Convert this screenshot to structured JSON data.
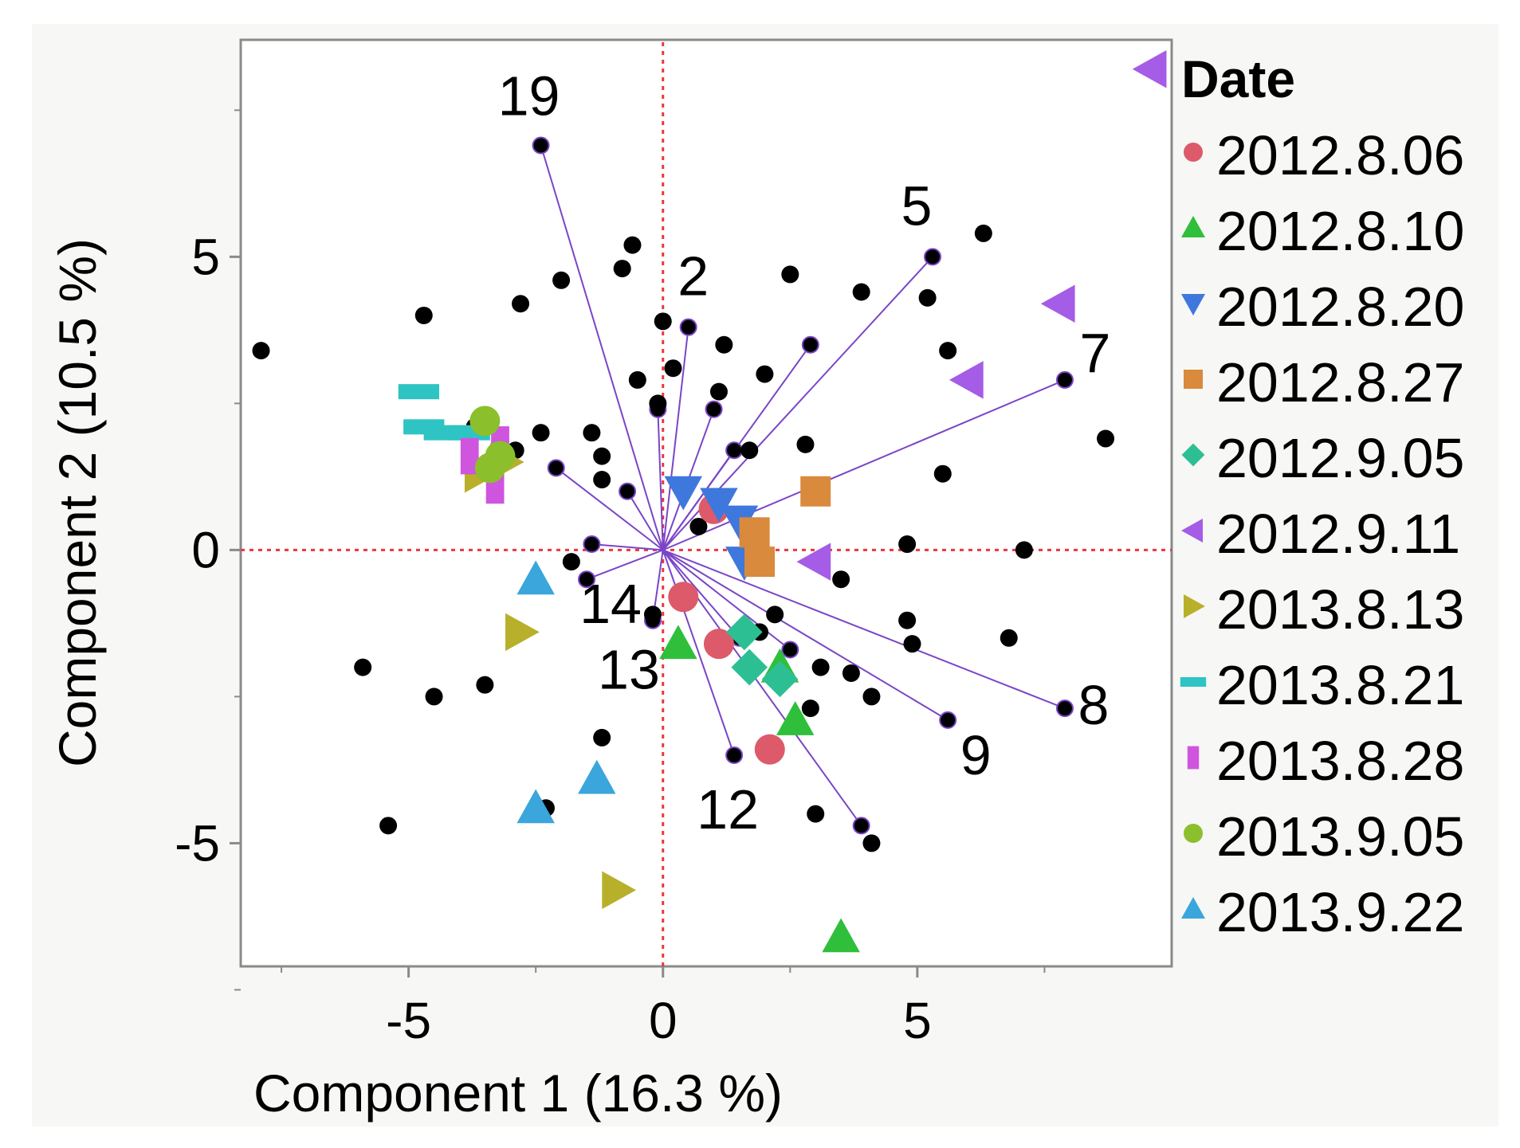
{
  "chart_data": {
    "type": "scatter",
    "subtype": "biplot",
    "xlabel": "Component 1  (16.3 %)",
    "ylabel": "Component 2  (10.5 %)",
    "xlim": [
      -8.3,
      10.0
    ],
    "ylim": [
      -7.1,
      8.7
    ],
    "xticks": [
      -5,
      0,
      5
    ],
    "yticks": [
      -5,
      0,
      5
    ],
    "reference_lines": {
      "x": 0,
      "y": 0,
      "color": "#e8383d",
      "style": "dotted"
    },
    "grid": false,
    "legend": {
      "title": "Date",
      "placement": "right",
      "entries": [
        {
          "label": "2012.8.06",
          "marker": "circle",
          "color": "#dc5a6a"
        },
        {
          "label": "2012.8.10",
          "marker": "triangle-up",
          "color": "#2fbf3b"
        },
        {
          "label": "2012.8.20",
          "marker": "triangle-down",
          "color": "#3f78dd"
        },
        {
          "label": "2012.8.27",
          "marker": "square",
          "color": "#d98a3c"
        },
        {
          "label": "2012.9.05",
          "marker": "diamond",
          "color": "#2cbf94"
        },
        {
          "label": "2012.9.11",
          "marker": "triangle-left",
          "color": "#a55ce6"
        },
        {
          "label": "2013.8.13",
          "marker": "triangle-right",
          "color": "#b8b02a"
        },
        {
          "label": "2013.8.21",
          "marker": "dash",
          "color": "#2ec4c4"
        },
        {
          "label": "2013.8.28",
          "marker": "bar",
          "color": "#cf55df"
        },
        {
          "label": "2013.9.05",
          "marker": "circle",
          "color": "#8bbf2c"
        },
        {
          "label": "2013.9.22",
          "marker": "triangle-up",
          "color": "#3aa6dc"
        }
      ]
    },
    "loading_color": "#7a45c7",
    "score_color": "#000000",
    "loadings": [
      {
        "label": "19",
        "x": -2.4,
        "y": 6.9
      },
      {
        "label": "2",
        "x": 0.5,
        "y": 3.8
      },
      {
        "label": "5",
        "x": 5.3,
        "y": 5.0
      },
      {
        "label": "7",
        "x": 7.9,
        "y": 2.9
      },
      {
        "label": "8",
        "x": 7.9,
        "y": -2.7
      },
      {
        "label": "9",
        "x": 5.6,
        "y": -2.9
      },
      {
        "label": "12",
        "x": 1.4,
        "y": -3.5
      },
      {
        "label": "13",
        "x": -0.2,
        "y": -1.2
      },
      {
        "label": "14",
        "x": -1.5,
        "y": -0.5
      },
      {
        "label": "",
        "x": -2.1,
        "y": 1.4
      },
      {
        "label": "",
        "x": -0.7,
        "y": 1.0
      },
      {
        "label": "",
        "x": -1.4,
        "y": 0.1
      },
      {
        "label": "",
        "x": -0.1,
        "y": 2.4
      },
      {
        "label": "",
        "x": 1.0,
        "y": 2.4
      },
      {
        "label": "",
        "x": 2.9,
        "y": 3.5
      },
      {
        "label": "",
        "x": 1.4,
        "y": 1.7
      },
      {
        "label": "",
        "x": 2.5,
        "y": -1.7
      },
      {
        "label": "",
        "x": 3.9,
        "y": -4.7
      },
      {
        "label": "",
        "x": 1.5,
        "y": -1.5
      }
    ],
    "scores": [
      {
        "x": -7.9,
        "y": 3.4
      },
      {
        "x": -4.7,
        "y": 4.0
      },
      {
        "x": -2.8,
        "y": 4.2
      },
      {
        "x": -2.0,
        "y": 4.6
      },
      {
        "x": -0.8,
        "y": 4.8
      },
      {
        "x": -0.6,
        "y": 5.2
      },
      {
        "x": 0.0,
        "y": 3.9
      },
      {
        "x": 1.2,
        "y": 3.5
      },
      {
        "x": 2.5,
        "y": 4.7
      },
      {
        "x": 3.9,
        "y": 4.4
      },
      {
        "x": 5.2,
        "y": 4.3
      },
      {
        "x": 6.3,
        "y": 5.4
      },
      {
        "x": 5.6,
        "y": 3.4
      },
      {
        "x": 8.7,
        "y": 1.9
      },
      {
        "x": 5.5,
        "y": 1.3
      },
      {
        "x": 4.8,
        "y": 0.1
      },
      {
        "x": 7.1,
        "y": 0.0
      },
      {
        "x": 0.2,
        "y": 3.1
      },
      {
        "x": -0.5,
        "y": 2.9
      },
      {
        "x": 1.1,
        "y": 2.7
      },
      {
        "x": 2.0,
        "y": 3.0
      },
      {
        "x": -0.1,
        "y": 2.5
      },
      {
        "x": -3.7,
        "y": 2.1
      },
      {
        "x": -2.4,
        "y": 2.0
      },
      {
        "x": -1.4,
        "y": 2.0
      },
      {
        "x": -2.9,
        "y": 1.7
      },
      {
        "x": -1.2,
        "y": 1.6
      },
      {
        "x": -1.2,
        "y": 1.2
      },
      {
        "x": 1.7,
        "y": 1.7
      },
      {
        "x": 2.8,
        "y": 1.8
      },
      {
        "x": 0.7,
        "y": 0.4
      },
      {
        "x": -1.8,
        "y": -0.2
      },
      {
        "x": 3.5,
        "y": -0.5
      },
      {
        "x": -0.2,
        "y": -1.1
      },
      {
        "x": 2.2,
        "y": -1.1
      },
      {
        "x": 4.8,
        "y": -1.2
      },
      {
        "x": 4.9,
        "y": -1.6
      },
      {
        "x": 6.8,
        "y": -1.5
      },
      {
        "x": 3.1,
        "y": -2.0
      },
      {
        "x": 3.7,
        "y": -2.1
      },
      {
        "x": -5.9,
        "y": -2.0
      },
      {
        "x": -4.5,
        "y": -2.5
      },
      {
        "x": -3.5,
        "y": -2.3
      },
      {
        "x": 2.9,
        "y": -2.7
      },
      {
        "x": 4.1,
        "y": -2.5
      },
      {
        "x": -1.2,
        "y": -3.2
      },
      {
        "x": -2.3,
        "y": -4.4
      },
      {
        "x": 3.0,
        "y": -4.5
      },
      {
        "x": -5.4,
        "y": -4.7
      },
      {
        "x": 4.1,
        "y": -5.0
      },
      {
        "x": 1.9,
        "y": -1.4
      }
    ],
    "groups": [
      {
        "name": "2012.8.06",
        "points": [
          [
            1.0,
            0.7
          ],
          [
            0.4,
            -0.8
          ],
          [
            1.1,
            -1.6
          ],
          [
            2.1,
            -3.4
          ]
        ]
      },
      {
        "name": "2012.8.10",
        "points": [
          [
            0.3,
            -1.6
          ],
          [
            2.3,
            -2.0
          ],
          [
            2.6,
            -2.9
          ],
          [
            3.5,
            -6.6
          ]
        ]
      },
      {
        "name": "2012.8.20",
        "points": [
          [
            0.4,
            1.0
          ],
          [
            1.1,
            0.8
          ],
          [
            1.5,
            0.5
          ],
          [
            1.6,
            -0.2
          ]
        ]
      },
      {
        "name": "2012.8.27",
        "points": [
          [
            3.0,
            1.0
          ],
          [
            1.8,
            0.3
          ],
          [
            1.9,
            -0.2
          ]
        ]
      },
      {
        "name": "2012.9.05",
        "points": [
          [
            1.6,
            -1.4
          ],
          [
            1.7,
            -2.0
          ],
          [
            2.3,
            -2.2
          ]
        ]
      },
      {
        "name": "2012.9.11",
        "points": [
          [
            9.6,
            8.2
          ],
          [
            7.8,
            4.2
          ],
          [
            6.0,
            2.9
          ],
          [
            3.0,
            -0.2
          ]
        ]
      },
      {
        "name": "2013.8.13",
        "points": [
          [
            -3.6,
            1.3
          ],
          [
            -3.1,
            1.5
          ],
          [
            -2.8,
            -1.4
          ],
          [
            -0.9,
            -5.8
          ]
        ]
      },
      {
        "name": "2013.8.21",
        "points": [
          [
            -4.8,
            2.7
          ],
          [
            -4.7,
            2.1
          ],
          [
            -4.3,
            2.0
          ],
          [
            -3.8,
            2.0
          ]
        ]
      },
      {
        "name": "2013.8.28",
        "points": [
          [
            -3.8,
            1.6
          ],
          [
            -3.2,
            1.8
          ],
          [
            -3.3,
            1.1
          ]
        ]
      },
      {
        "name": "2013.9.05",
        "points": [
          [
            -3.5,
            2.2
          ],
          [
            -3.2,
            1.6
          ],
          [
            -3.4,
            1.4
          ]
        ]
      },
      {
        "name": "2013.9.22",
        "points": [
          [
            -2.5,
            -0.5
          ],
          [
            -1.3,
            -3.9
          ],
          [
            -2.5,
            -4.4
          ]
        ]
      }
    ]
  }
}
